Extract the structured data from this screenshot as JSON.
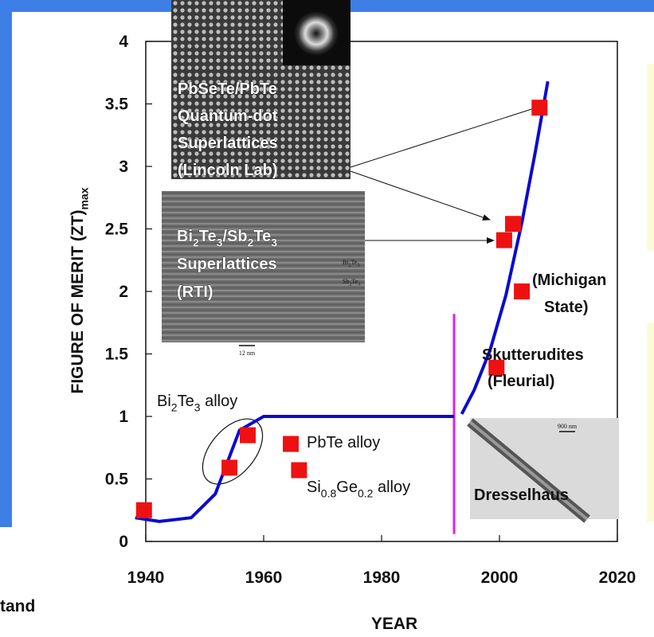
{
  "chart_data": {
    "type": "scatter",
    "xlabel": "YEAR",
    "ylabel": [
      "FIGURE OF MERIT (ZT)",
      {
        "sub": "max"
      }
    ],
    "xlim": [
      1940,
      2020
    ],
    "ylim": [
      0,
      4
    ],
    "xticks": [
      1940,
      1960,
      1980,
      2000,
      2020
    ],
    "yticks": [
      0,
      0.5,
      1,
      1.5,
      2,
      2.5,
      3,
      3.5,
      4
    ],
    "series": [
      {
        "type": "scatter",
        "color": "#ee1111",
        "x": [
          1939.7,
          1954.2,
          1957.3,
          1964.6,
          1966,
          1999.5,
          2003.8,
          2000.8,
          2002.3,
          2006.8
        ],
        "values": [
          0.25,
          0.59,
          0.85,
          0.78,
          0.57,
          1.39,
          2.0,
          2.41,
          2.54,
          3.47
        ]
      },
      {
        "type": "line",
        "color": "#0a0ad0",
        "x": [
          1938.2,
          1942.3,
          1947.7,
          1951.8,
          1955.9,
          1960,
          1992.3,
          1993,
          1993.6,
          1995.7,
          1998.4,
          2001.1,
          2003.8,
          2006.1,
          2008.2
        ],
        "values": [
          0.19,
          0.16,
          0.19,
          0.38,
          0.89,
          1.0,
          1.0,
          null,
          1.02,
          1.21,
          1.53,
          1.97,
          2.55,
          3.12,
          3.68
        ]
      }
    ],
    "divider": {
      "color": "#e020e0",
      "x": 1992.3,
      "range": [
        0.06,
        1.82
      ]
    },
    "annotations": [
      {
        "lines": [
          [
            "Bi",
            {
              "sub": "2"
            },
            "Te",
            {
              "sub": "3"
            },
            " alloy"
          ]
        ]
      },
      {
        "lines": [
          [
            "PbTe alloy"
          ]
        ]
      },
      {
        "lines": [
          [
            "Si",
            {
              "sub": "0.8"
            },
            "Ge",
            {
              "sub": "0.2"
            },
            " alloy"
          ]
        ]
      },
      {
        "lines": [
          [
            "(Michigan"
          ],
          [
            "State)"
          ]
        ]
      },
      {
        "lines": [
          [
            "Skutterudites"
          ],
          [
            "(Fleurial)"
          ]
        ]
      }
    ],
    "insets": [
      {
        "lines": [
          [
            "PbSeTe/PbTe"
          ],
          [
            "Quantum-dot"
          ],
          [
            "Superlattices"
          ],
          [
            "(Lincoln Lab)"
          ]
        ]
      },
      {
        "lines": [
          [
            "Bi",
            {
              "sub": "2"
            },
            "Te",
            {
              "sub": "3"
            },
            "/Sb",
            {
              "sub": "2"
            },
            "Te",
            {
              "sub": "3"
            }
          ],
          [
            "Superlattices"
          ],
          [
            "(RTI)"
          ]
        ],
        "labels": [
          [
            "Bi",
            {
              "sub": "2"
            },
            "Te",
            {
              "sub": "3"
            }
          ],
          [
            "Sb",
            {
              "sub": "2"
            },
            "Te",
            {
              "sub": "3"
            }
          ]
        ],
        "scale": "12 nm"
      },
      {
        "lines": [
          [
            "Dresselhaus"
          ]
        ],
        "scale": "900 nm"
      }
    ]
  },
  "page_fragment": "tand"
}
